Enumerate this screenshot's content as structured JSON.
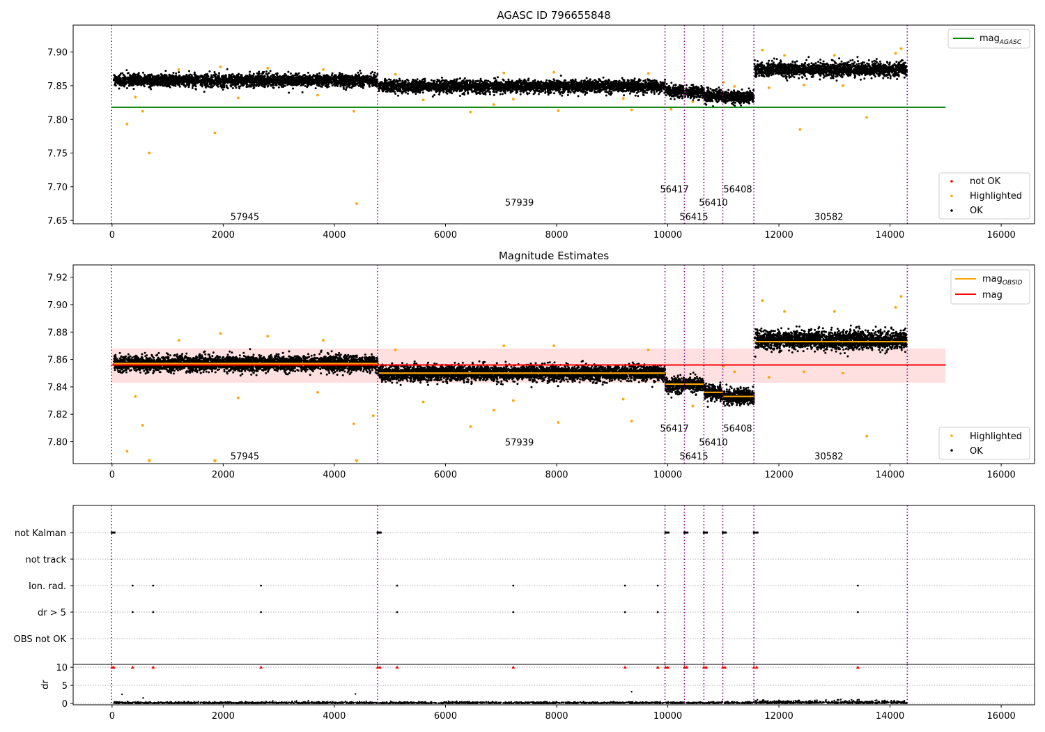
{
  "chart_data": [
    {
      "type": "scatter",
      "title": "AGASC ID 796655848",
      "xlim": [
        -700,
        16600
      ],
      "ylim": [
        7.645,
        7.94
      ],
      "xticks": [
        0,
        2000,
        4000,
        6000,
        8000,
        10000,
        12000,
        14000,
        16000
      ],
      "yticks": [
        7.65,
        7.7,
        7.75,
        7.8,
        7.85,
        7.9
      ],
      "ytick_labels": [
        "7.65",
        "7.70",
        "7.75",
        "7.80",
        "7.85",
        "7.90"
      ],
      "vlines": [
        -10,
        4780,
        9950,
        10300,
        10650,
        10990,
        11550,
        14310
      ],
      "obsid_labels": [
        {
          "text": "57945",
          "x": 2390,
          "y": 7.656
        },
        {
          "text": "57939",
          "x": 7330,
          "y": 7.677
        },
        {
          "text": "56417",
          "x": 10120,
          "y": 7.697
        },
        {
          "text": "56415",
          "x": 10470,
          "y": 7.656
        },
        {
          "text": "56410",
          "x": 10820,
          "y": 7.677
        },
        {
          "text": "56408",
          "x": 11260,
          "y": 7.697
        },
        {
          "text": "30582",
          "x": 12900,
          "y": 7.656
        }
      ],
      "hline": {
        "name": "mag",
        "name_sub": "AGASC",
        "y": 7.818,
        "x": [
          -10,
          15000
        ],
        "color": "#008000"
      },
      "segments": [
        {
          "x0": 30,
          "x1": 4780,
          "mean": 7.858,
          "spread": 0.008
        },
        {
          "x0": 4800,
          "x1": 9950,
          "mean": 7.849,
          "spread": 0.008
        },
        {
          "x0": 9960,
          "x1": 10300,
          "mean": 7.842,
          "spread": 0.008
        },
        {
          "x0": 10310,
          "x1": 10650,
          "mean": 7.841,
          "spread": 0.008
        },
        {
          "x0": 10660,
          "x1": 10990,
          "mean": 7.835,
          "spread": 0.008
        },
        {
          "x0": 11000,
          "x1": 11550,
          "mean": 7.833,
          "spread": 0.008
        },
        {
          "x0": 11560,
          "x1": 14300,
          "mean": 7.874,
          "spread": 0.009
        }
      ],
      "highlighted": [
        [
          270,
          7.793
        ],
        [
          420,
          7.833
        ],
        [
          550,
          7.812
        ],
        [
          670,
          7.75
        ],
        [
          1850,
          7.78
        ],
        [
          2270,
          7.832
        ],
        [
          3700,
          7.836
        ],
        [
          4350,
          7.812
        ],
        [
          4400,
          7.675
        ],
        [
          5600,
          7.829
        ],
        [
          6450,
          7.811
        ],
        [
          6870,
          7.822
        ],
        [
          7220,
          7.83
        ],
        [
          8030,
          7.813
        ],
        [
          9200,
          7.831
        ],
        [
          9350,
          7.814
        ],
        [
          10060,
          7.815
        ],
        [
          10450,
          7.826
        ],
        [
          11820,
          7.847
        ],
        [
          12380,
          7.785
        ],
        [
          12450,
          7.851
        ],
        [
          13150,
          7.85
        ],
        [
          13580,
          7.803
        ],
        [
          1200,
          7.874
        ],
        [
          1950,
          7.878
        ],
        [
          2800,
          7.876
        ],
        [
          3800,
          7.874
        ],
        [
          5100,
          7.867
        ],
        [
          7050,
          7.869
        ],
        [
          7950,
          7.87
        ],
        [
          9650,
          7.868
        ],
        [
          11000,
          7.855
        ],
        [
          11200,
          7.849
        ],
        [
          11700,
          7.903
        ],
        [
          12100,
          7.895
        ],
        [
          13000,
          7.895
        ],
        [
          14100,
          7.898
        ],
        [
          14200,
          7.905
        ]
      ],
      "legend": [
        {
          "label": "not OK",
          "color": "#ff0000"
        },
        {
          "label": "Highlighted",
          "color": "#ffa500"
        },
        {
          "label": "OK",
          "color": "#000000"
        }
      ]
    },
    {
      "type": "scatter",
      "title": "Magnitude Estimates",
      "xlim": [
        -700,
        16600
      ],
      "ylim": [
        7.784,
        7.929
      ],
      "xticks": [
        0,
        2000,
        4000,
        6000,
        8000,
        10000,
        12000,
        14000,
        16000
      ],
      "yticks": [
        7.8,
        7.82,
        7.84,
        7.86,
        7.88,
        7.9,
        7.92
      ],
      "ytick_labels": [
        "7.80",
        "7.82",
        "7.84",
        "7.86",
        "7.88",
        "7.90",
        "7.92"
      ],
      "vlines": [
        -10,
        4780,
        9950,
        10300,
        10650,
        10990,
        11550,
        14310
      ],
      "obsid_labels": [
        {
          "text": "57945",
          "x": 2390,
          "y": 7.7896
        },
        {
          "text": "57939",
          "x": 7330,
          "y": 7.7998
        },
        {
          "text": "56417",
          "x": 10120,
          "y": 7.81
        },
        {
          "text": "56415",
          "x": 10470,
          "y": 7.7896
        },
        {
          "text": "56410",
          "x": 10820,
          "y": 7.7998
        },
        {
          "text": "56408",
          "x": 11260,
          "y": 7.81
        }
      ],
      "obsid_label_extra": {
        "text": "30582",
        "x": 12900,
        "y": 7.7896
      },
      "mag_line": {
        "name": "mag",
        "y": 7.856,
        "x": [
          -10,
          15000
        ],
        "color": "#ff0000",
        "band": [
          7.843,
          7.868
        ]
      },
      "obsid_means": [
        {
          "x0": 30,
          "x1": 4780,
          "mean": 7.857
        },
        {
          "x0": 4800,
          "x1": 9950,
          "mean": 7.85
        },
        {
          "x0": 9960,
          "x1": 10300,
          "mean": 7.842
        },
        {
          "x0": 10310,
          "x1": 10650,
          "mean": 7.842
        },
        {
          "x0": 10660,
          "x1": 10990,
          "mean": 7.836
        },
        {
          "x0": 11000,
          "x1": 11550,
          "mean": 7.833
        },
        {
          "x0": 11560,
          "x1": 14300,
          "mean": 7.873
        }
      ],
      "segments": [
        {
          "x0": 30,
          "x1": 4780,
          "mean": 7.857,
          "spread": 0.005
        },
        {
          "x0": 4800,
          "x1": 9950,
          "mean": 7.85,
          "spread": 0.005
        },
        {
          "x0": 9960,
          "x1": 10300,
          "mean": 7.842,
          "spread": 0.005
        },
        {
          "x0": 10310,
          "x1": 10650,
          "mean": 7.842,
          "spread": 0.005
        },
        {
          "x0": 10660,
          "x1": 10990,
          "mean": 7.836,
          "spread": 0.005
        },
        {
          "x0": 11000,
          "x1": 11550,
          "mean": 7.833,
          "spread": 0.005
        },
        {
          "x0": 11560,
          "x1": 14300,
          "mean": 7.874,
          "spread": 0.006
        }
      ],
      "highlighted": [
        [
          270,
          7.793
        ],
        [
          420,
          7.833
        ],
        [
          550,
          7.812
        ],
        [
          1850,
          7.786
        ],
        [
          2270,
          7.832
        ],
        [
          3700,
          7.836
        ],
        [
          4350,
          7.813
        ],
        [
          4700,
          7.819
        ],
        [
          5600,
          7.829
        ],
        [
          6450,
          7.811
        ],
        [
          6870,
          7.823
        ],
        [
          7220,
          7.83
        ],
        [
          8030,
          7.814
        ],
        [
          9200,
          7.831
        ],
        [
          9350,
          7.815
        ],
        [
          10450,
          7.826
        ],
        [
          11820,
          7.847
        ],
        [
          12450,
          7.851
        ],
        [
          13150,
          7.85
        ],
        [
          13580,
          7.804
        ],
        [
          1200,
          7.874
        ],
        [
          1950,
          7.879
        ],
        [
          2800,
          7.877
        ],
        [
          3800,
          7.874
        ],
        [
          5100,
          7.867
        ],
        [
          7050,
          7.87
        ],
        [
          7950,
          7.87
        ],
        [
          9650,
          7.867
        ],
        [
          11000,
          7.855
        ],
        [
          11200,
          7.851
        ],
        [
          11700,
          7.903
        ],
        [
          12100,
          7.895
        ],
        [
          13000,
          7.895
        ],
        [
          14100,
          7.898
        ],
        [
          14200,
          7.906
        ]
      ],
      "clipped_low": [
        670,
        1850,
        4400
      ],
      "legend_lines": [
        {
          "label": "mag",
          "sub": "OBSID",
          "color": "#ffa500"
        },
        {
          "label": "mag",
          "color": "#ff0000"
        }
      ],
      "legend": [
        {
          "label": "Highlighted",
          "color": "#ffa500"
        },
        {
          "label": "OK",
          "color": "#000000"
        }
      ]
    },
    {
      "type": "scatter",
      "flags": [
        "not Kalman",
        "not track",
        "Ion. rad.",
        "dr > 5",
        "OBS not OK"
      ],
      "xlim": [
        -700,
        16600
      ],
      "vlines": [
        -10,
        4780,
        9950,
        10300,
        10650,
        10990,
        11550,
        14310
      ],
      "not_kalman_x": [
        0,
        30,
        4780,
        4820,
        9960,
        10000,
        10300,
        10340,
        10650,
        10690,
        10990,
        11030,
        11550,
        11600
      ],
      "ion_rad_x": [
        370,
        740,
        2680,
        5130,
        7220,
        9230,
        9820,
        13420
      ],
      "dr5_x": [
        370,
        740,
        2680,
        5130,
        7220,
        9230,
        9820,
        13420
      ]
    },
    {
      "type": "scatter",
      "ylabel": "dr",
      "xlim": [
        -700,
        16600
      ],
      "ylim": [
        -0.4,
        10.8
      ],
      "xticks": [
        0,
        2000,
        4000,
        6000,
        8000,
        10000,
        12000,
        14000,
        16000
      ],
      "yticks": [
        0,
        5,
        10
      ],
      "vlines": [
        -10,
        4780,
        9950,
        10300,
        10650,
        10990,
        11550,
        14310
      ],
      "clipped_x": [
        0,
        30,
        370,
        740,
        2680,
        4780,
        4820,
        5130,
        7220,
        9230,
        9820,
        9960,
        10000,
        10300,
        10340,
        10650,
        10690,
        10990,
        11030,
        11550,
        11600,
        13420
      ],
      "outliers": [
        [
          180,
          2.5
        ],
        [
          560,
          1.5
        ],
        [
          4380,
          2.6
        ],
        [
          9350,
          3.2
        ]
      ]
    }
  ]
}
